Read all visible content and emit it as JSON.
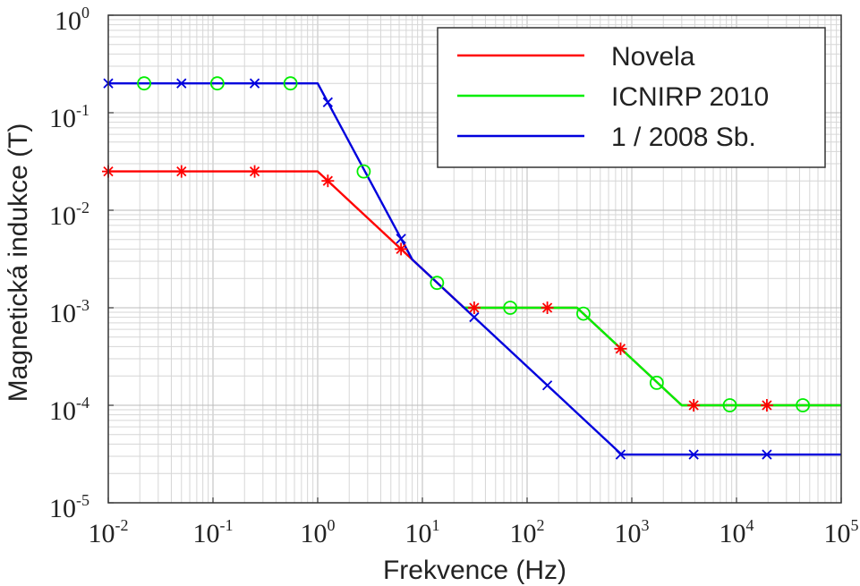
{
  "chart_data": {
    "type": "line",
    "title": "",
    "xlabel": "Frekvence (Hz)",
    "ylabel": "Magnetická indukce (T)",
    "x_scale": "log",
    "y_scale": "log",
    "xlim": [
      0.01,
      100000
    ],
    "ylim": [
      1e-05,
      1
    ],
    "grid": true,
    "legend_position": "top-right",
    "x_ticks": [
      {
        "base": "10",
        "exp": "-2"
      },
      {
        "base": "10",
        "exp": "-1"
      },
      {
        "base": "10",
        "exp": "0"
      },
      {
        "base": "10",
        "exp": "1"
      },
      {
        "base": "10",
        "exp": "2"
      },
      {
        "base": "10",
        "exp": "3"
      },
      {
        "base": "10",
        "exp": "4"
      },
      {
        "base": "10",
        "exp": "5"
      }
    ],
    "y_ticks": [
      {
        "base": "10",
        "exp": "-5"
      },
      {
        "base": "10",
        "exp": "-4"
      },
      {
        "base": "10",
        "exp": "-3"
      },
      {
        "base": "10",
        "exp": "-2"
      },
      {
        "base": "10",
        "exp": "-1"
      },
      {
        "base": "10",
        "exp": "0"
      }
    ],
    "series": [
      {
        "name": "Novela",
        "color": "#ff0000",
        "marker": "asterisk",
        "line": [
          [
            0.01,
            0.025
          ],
          [
            1,
            0.025
          ],
          [
            8,
            0.003125
          ],
          [
            25,
            0.001
          ],
          [
            300,
            0.001
          ],
          [
            3000,
            0.0001
          ],
          [
            100000,
            0.0001
          ]
        ],
        "markers": [
          [
            0.01,
            0.025
          ],
          [
            0.05,
            0.025
          ],
          [
            0.25,
            0.025
          ],
          [
            1.25,
            0.02
          ],
          [
            6.25,
            0.004
          ],
          [
            31.25,
            0.001
          ],
          [
            156,
            0.001
          ],
          [
            781,
            0.00038
          ],
          [
            3900,
            0.0001
          ],
          [
            19500,
            0.0001
          ]
        ]
      },
      {
        "name": "ICNIRP 2010",
        "color": "#00ee00",
        "marker": "circle",
        "line": [
          [
            25,
            0.001
          ],
          [
            300,
            0.001
          ],
          [
            3000,
            0.0001
          ],
          [
            100000,
            0.0001
          ]
        ],
        "markers": [
          [
            0.022,
            0.2
          ],
          [
            0.11,
            0.2
          ],
          [
            0.55,
            0.2
          ],
          [
            2.75,
            0.025
          ],
          [
            13.8,
            0.0018
          ],
          [
            69,
            0.001
          ],
          [
            345,
            0.00087
          ],
          [
            1730,
            0.00017
          ],
          [
            8630,
            0.0001
          ],
          [
            43000,
            0.0001
          ]
        ]
      },
      {
        "name": "1 / 2008 Sb.",
        "color": "#0000dd",
        "marker": "x",
        "line": [
          [
            0.01,
            0.2
          ],
          [
            1,
            0.2
          ],
          [
            8,
            0.003125
          ],
          [
            800,
            3.125e-05
          ],
          [
            100000,
            3.125e-05
          ]
        ],
        "markers": [
          [
            0.01,
            0.2
          ],
          [
            0.05,
            0.2
          ],
          [
            0.25,
            0.2
          ],
          [
            1.25,
            0.128
          ],
          [
            6.25,
            0.0051
          ],
          [
            31.25,
            0.0008
          ],
          [
            156,
            0.00016
          ],
          [
            781,
            3.125e-05
          ],
          [
            3900,
            3.125e-05
          ],
          [
            19500,
            3.125e-05
          ]
        ]
      }
    ]
  }
}
